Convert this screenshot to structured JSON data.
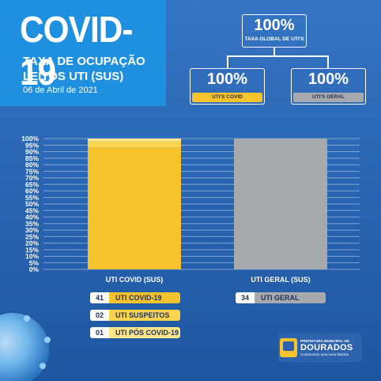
{
  "header": {
    "title": "COVID-19",
    "subtitle_line1": "TAXA DE OCUPAÇÃO",
    "subtitle_line2": "LEITOS UTI (SUS)",
    "date": "06 de Abril de 2021"
  },
  "kpis": {
    "global": {
      "value": "100%",
      "label": "TAXA GLOBAL DE UTI'S"
    },
    "covid": {
      "value": "100%",
      "label": "UTI'S COVID"
    },
    "geral": {
      "value": "100%",
      "label": "UTI'S GERAL"
    }
  },
  "chart_data": {
    "type": "bar",
    "categories": [
      "UTI COVID (SUS)",
      "UTI GERAL (SUS)"
    ],
    "series": [
      {
        "name": "UTI COVID-19",
        "values": [
          93.2,
          0
        ]
      },
      {
        "name": "UTI SUSPEITOS",
        "values": [
          4.5,
          0
        ]
      },
      {
        "name": "UTI PÓS COVID-19",
        "values": [
          2.3,
          0
        ]
      },
      {
        "name": "UTI GERAL",
        "values": [
          0,
          100
        ]
      }
    ],
    "stacked": true,
    "yticks": [
      "0%",
      "5%",
      "10%",
      "15%",
      "20%",
      "25%",
      "30%",
      "35%",
      "40%",
      "45%",
      "50%",
      "55%",
      "60%",
      "65%",
      "70%",
      "75%",
      "80%",
      "85%",
      "90%",
      "95%",
      "100%"
    ],
    "ylim": [
      0,
      100
    ],
    "grid": true,
    "colors": [
      "#f6c32d",
      "#fbd44d",
      "#fde68a",
      "#a8a9ad"
    ]
  },
  "legend": [
    {
      "count": "41",
      "label": "UTI COVID-19"
    },
    {
      "count": "02",
      "label": "UTI SUSPEITOS"
    },
    {
      "count": "01",
      "label": "UTI PÓS COVID-19"
    },
    {
      "count": "34",
      "label": "UTI GERAL"
    }
  ],
  "logo": {
    "line1": "PREFEITURA MUNICIPAL DE",
    "line2": "DOURADOS",
    "line3": "Construindo uma nova história"
  }
}
